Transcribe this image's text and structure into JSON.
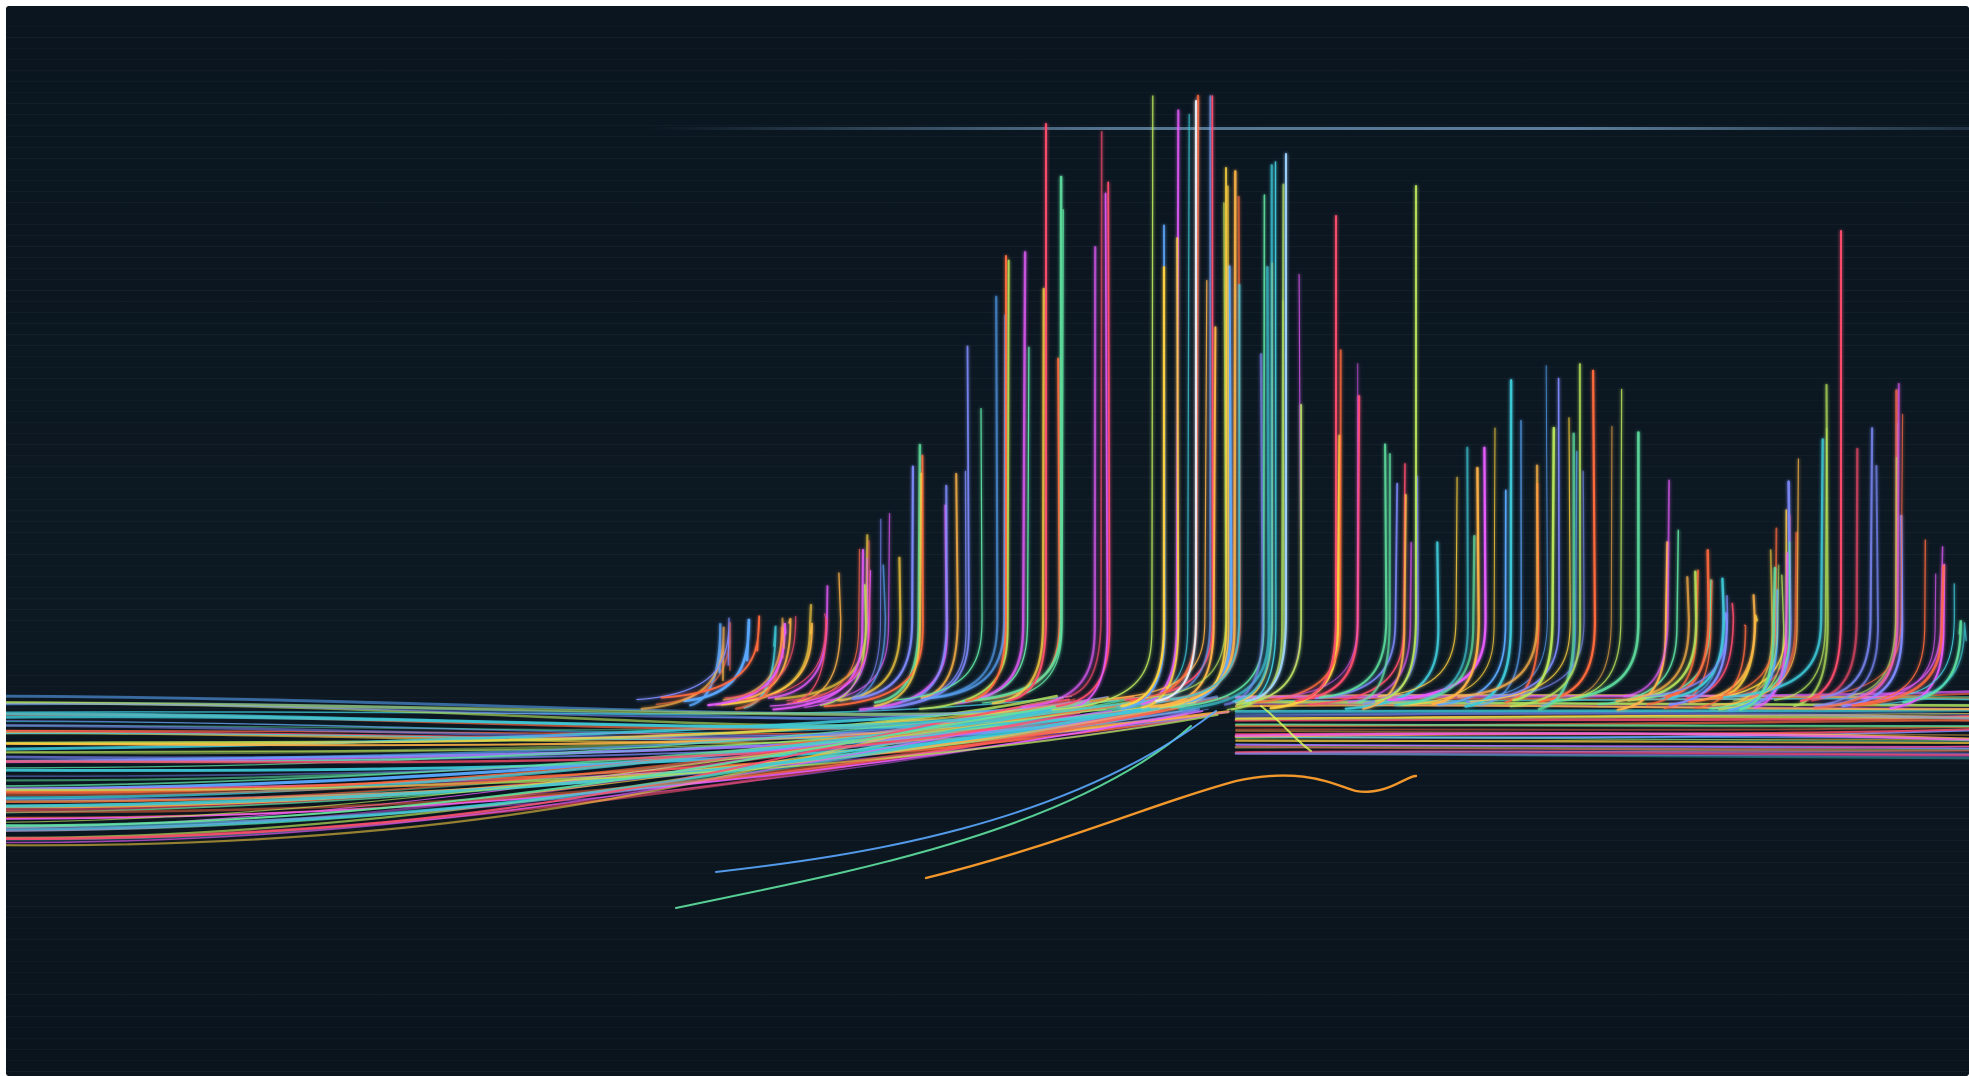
{
  "artwork": {
    "kind": "abstract light-trail artwork",
    "background_color": "#0b1620",
    "palette": [
      "#ff4d6d",
      "#ff6a3d",
      "#ffb347",
      "#ffd23f",
      "#b7e35a",
      "#5fe3a1",
      "#3ec9d8",
      "#5aa9ff",
      "#7f8cff",
      "#e85cff"
    ],
    "highlight_color": "#9fd3ff"
  }
}
